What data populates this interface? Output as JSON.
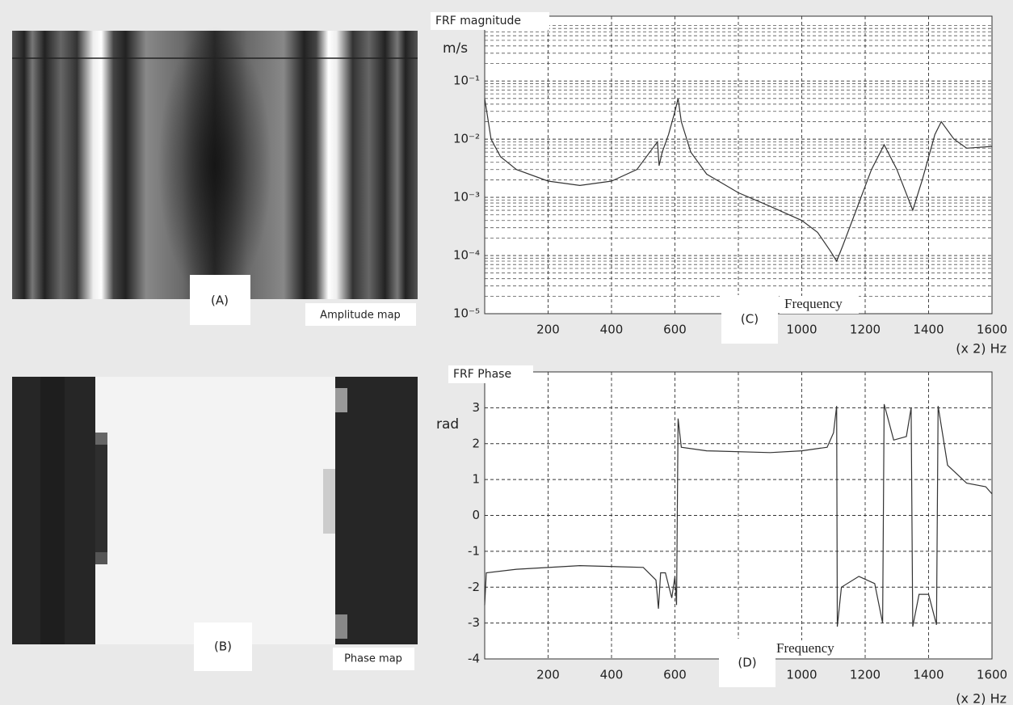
{
  "panels": [
    {
      "label": "(A)",
      "caption": "Amplitude map"
    },
    {
      "label": "(B)",
      "caption": "Phase map"
    }
  ],
  "chart_data": [
    {
      "type": "line",
      "title": "FRF magnitude",
      "panel_label": "(C)",
      "y_label": "m/s",
      "x_label": "Frequency",
      "x_unit": "(x 2) Hz",
      "log_y": true,
      "grid": true,
      "minor_grid": true,
      "xlim": [
        0,
        1600
      ],
      "xticks": [
        200,
        400,
        600,
        800,
        1000,
        1200,
        1400,
        1600
      ],
      "ylim": [
        1e-05,
        1.3
      ],
      "yticks": [
        {
          "value": 1e-05,
          "label": "10⁻⁵"
        },
        {
          "value": 0.0001,
          "label": "10⁻⁴"
        },
        {
          "value": 0.001,
          "label": "10⁻³"
        },
        {
          "value": 0.01,
          "label": "10⁻²"
        },
        {
          "value": 0.1,
          "label": "10⁻¹"
        }
      ],
      "series": [
        {
          "color": "#333333",
          "x": [
            0,
            20,
            50,
            100,
            200,
            300,
            400,
            480,
            530,
            545,
            550,
            560,
            580,
            600,
            610,
            620,
            650,
            700,
            800,
            900,
            1000,
            1050,
            1090,
            1110,
            1130,
            1180,
            1220,
            1260,
            1300,
            1350,
            1380,
            1420,
            1440,
            1480,
            1520,
            1600
          ],
          "values": [
            0.05,
            0.01,
            0.005,
            0.003,
            0.0019,
            0.0016,
            0.0019,
            0.003,
            0.007,
            0.009,
            0.0035,
            0.006,
            0.012,
            0.03,
            0.05,
            0.02,
            0.006,
            0.0025,
            0.0012,
            0.0007,
            0.0004,
            0.00025,
            0.00012,
            8e-05,
            0.00015,
            0.0008,
            0.003,
            0.008,
            0.003,
            0.0006,
            0.002,
            0.012,
            0.02,
            0.01,
            0.007,
            0.0075
          ]
        }
      ]
    },
    {
      "type": "line",
      "title": "FRF Phase",
      "panel_label": "(D)",
      "y_label": "rad",
      "x_label": "Frequency",
      "x_unit": "(x 2) Hz",
      "log_y": false,
      "grid": true,
      "minor_grid": false,
      "xlim": [
        0,
        1600
      ],
      "xticks": [
        200,
        400,
        600,
        800,
        1000,
        1200,
        1400,
        1600
      ],
      "ylim": [
        -4,
        4
      ],
      "yticks": [
        -4,
        -3,
        -2,
        -1,
        0,
        1,
        2,
        3
      ],
      "series": [
        {
          "color": "#333333",
          "x": [
            0,
            5,
            100,
            300,
            500,
            540,
            548,
            555,
            570,
            590,
            600,
            605,
            610,
            620,
            700,
            900,
            1000,
            1080,
            1100,
            1110,
            1112,
            1125,
            1180,
            1230,
            1255,
            1260,
            1290,
            1330,
            1345,
            1350,
            1370,
            1400,
            1425,
            1430,
            1460,
            1520,
            1580,
            1600
          ],
          "values": [
            -2.5,
            -1.6,
            -1.5,
            -1.4,
            -1.45,
            -1.8,
            -2.6,
            -1.6,
            -1.6,
            -2.3,
            -1.7,
            -2.5,
            2.7,
            1.9,
            1.8,
            1.75,
            1.8,
            1.9,
            2.3,
            3.05,
            -3.1,
            -2.0,
            -1.7,
            -1.9,
            -3.0,
            3.1,
            2.1,
            2.2,
            3.0,
            -3.1,
            -2.2,
            -2.2,
            -3.05,
            3.05,
            1.4,
            0.9,
            0.8,
            0.6
          ]
        }
      ]
    }
  ]
}
